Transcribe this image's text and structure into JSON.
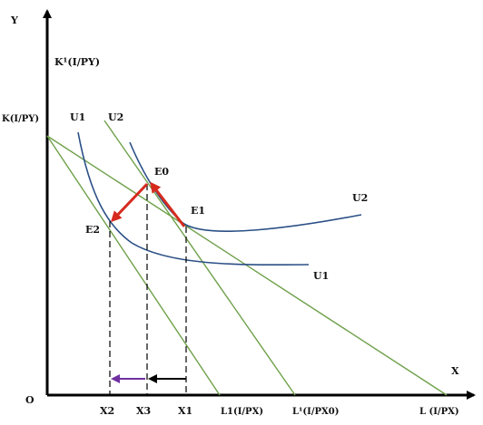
{
  "axes": {
    "y_label": "Y",
    "x_label": "X",
    "origin": "O",
    "y_upper": "K¹(I/PY)",
    "y_lower": "K(I/PY)"
  },
  "curves": {
    "u1_left": "U1",
    "u2_left": "U2",
    "u2_right": "U2",
    "u1_right": "U1"
  },
  "points": {
    "e0": "E0",
    "e1": "E1",
    "e2": "E2"
  },
  "x_ticks": {
    "x2": "X2",
    "x3": "X3",
    "x1": "X1",
    "l1": "L1(I/PX)",
    "l_prime": "L¹(I/PX0)",
    "l": "L (I/PX)"
  },
  "colors": {
    "budget_line": "#6fa04a",
    "indifference_curve": "#2a4f86",
    "movement_arrow": "#d62a1e",
    "substitution_arrow": "#7030a0",
    "income_arrow": "#000000"
  }
}
